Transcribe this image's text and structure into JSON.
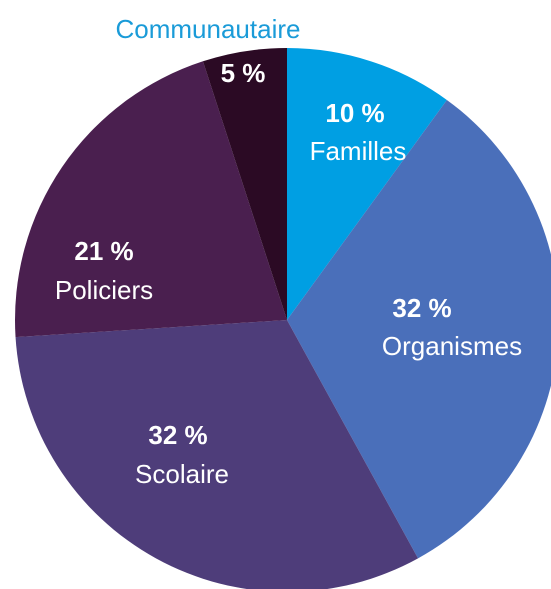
{
  "chart_data": {
    "type": "pie",
    "title": "",
    "slices": [
      {
        "label": "Familles",
        "value_label": "10 %",
        "value": 10,
        "color": "#009FE3"
      },
      {
        "label": "Organismes",
        "value_label": "32 %",
        "value": 32,
        "color": "#4A6FBA"
      },
      {
        "label": "Scolaire",
        "value_label": "32 %",
        "value": 32,
        "color": "#4E3D7A"
      },
      {
        "label": "Policiers",
        "value_label": "21 %",
        "value": 21,
        "color": "#4A1F4F"
      },
      {
        "label": "Communautaire",
        "value_label": "5 %",
        "value": 5,
        "color": "#2B0A24"
      }
    ],
    "label_color_outside": "#1A9BD8",
    "start_angle": "12 o'clock",
    "direction": "clockwise",
    "legend": "none"
  }
}
